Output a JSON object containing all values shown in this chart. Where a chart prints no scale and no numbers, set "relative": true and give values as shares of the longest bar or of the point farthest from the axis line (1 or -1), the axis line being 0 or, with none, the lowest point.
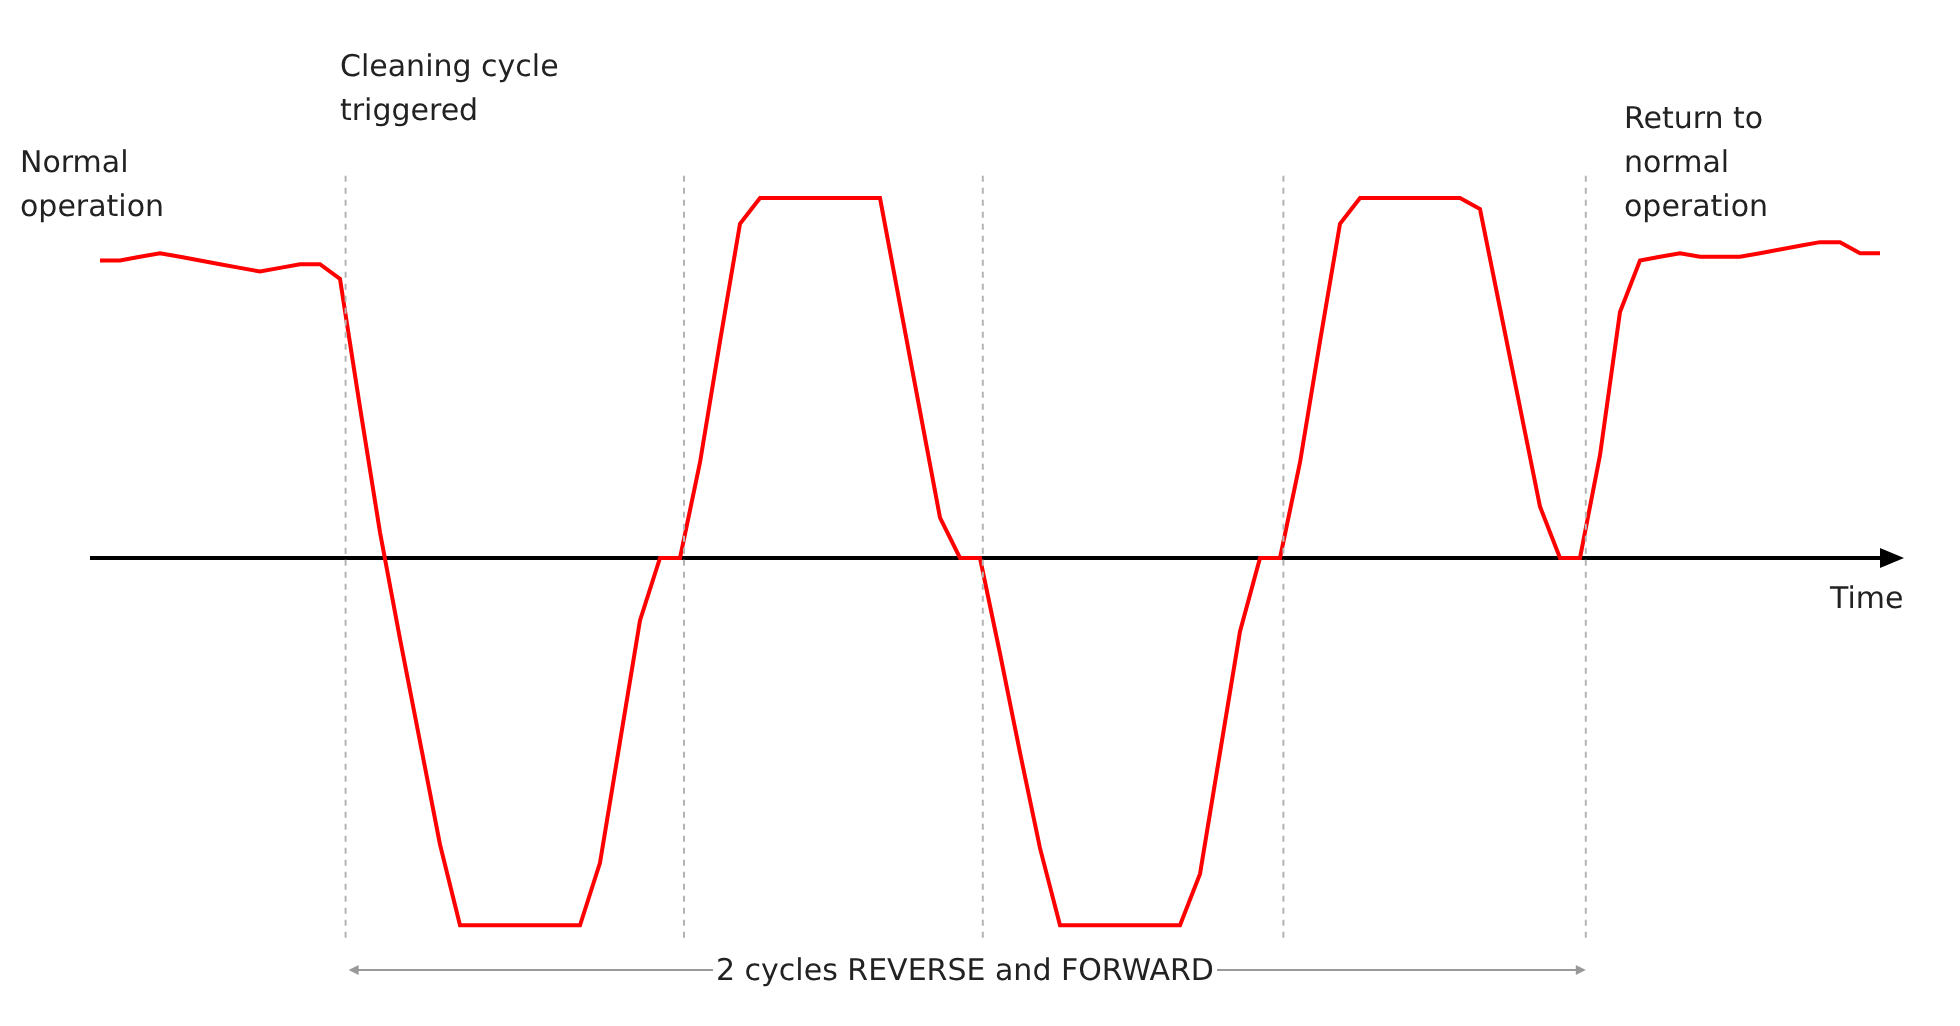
{
  "chart_data": {
    "type": "line",
    "relative": true,
    "xlabel": "Time",
    "categories": [
      null,
      null,
      null,
      null,
      null,
      null,
      null,
      null,
      null,
      null,
      null,
      null,
      null,
      null,
      null,
      null,
      null,
      null,
      null,
      null,
      null,
      null,
      null,
      null,
      null,
      null,
      null,
      null,
      null,
      null,
      null,
      null,
      null,
      null,
      null,
      null,
      null,
      null,
      null,
      null,
      null,
      null,
      null,
      null,
      null,
      null,
      null,
      null,
      null,
      null,
      null,
      null,
      null,
      null,
      null,
      null,
      null,
      null,
      null,
      null,
      null,
      null,
      null,
      null,
      null,
      null,
      null,
      null,
      null,
      null,
      null,
      null,
      null,
      null,
      null,
      null,
      null,
      null,
      null,
      null,
      null,
      null,
      null,
      null,
      null,
      null,
      null,
      null,
      null,
      null
    ],
    "series": [
      {
        "color": "#ff0000",
        "values": [
          0.81,
          0.81,
          0.82,
          0.83,
          0.82,
          0.81,
          0.8,
          0.79,
          0.78,
          0.79,
          0.8,
          0.8,
          0.76,
          0.41,
          0.07,
          -0.22,
          -0.5,
          -0.78,
          -1,
          -1,
          -1,
          -1,
          -1,
          -1,
          -1,
          -0.83,
          -0.5,
          -0.17,
          0,
          0,
          0.26,
          0.59,
          0.91,
          0.98,
          0.98,
          0.98,
          0.98,
          0.98,
          0.98,
          0.98,
          0.69,
          0.4,
          0.11,
          0,
          0,
          -0.26,
          -0.53,
          -0.79,
          -1,
          -1,
          -1,
          -1,
          -1,
          -1,
          -1,
          -0.86,
          -0.53,
          -0.2,
          0,
          0,
          0.26,
          0.59,
          0.91,
          0.98,
          0.98,
          0.98,
          0.98,
          0.98,
          0.98,
          0.95,
          0.68,
          0.41,
          0.14,
          0,
          0,
          0.28,
          0.67,
          0.81,
          0.82,
          0.83,
          0.82,
          0.82,
          0.82,
          0.83,
          0.84,
          0.85,
          0.86,
          0.86,
          0.83,
          0.83
        ]
      }
    ],
    "annotations": [
      "Normal operation",
      "Cleaning cycle triggered",
      "Return to normal operation",
      "2 cycles REVERSE and FORWARD"
    ],
    "marker": "none",
    "line_style": "solid"
  }
}
